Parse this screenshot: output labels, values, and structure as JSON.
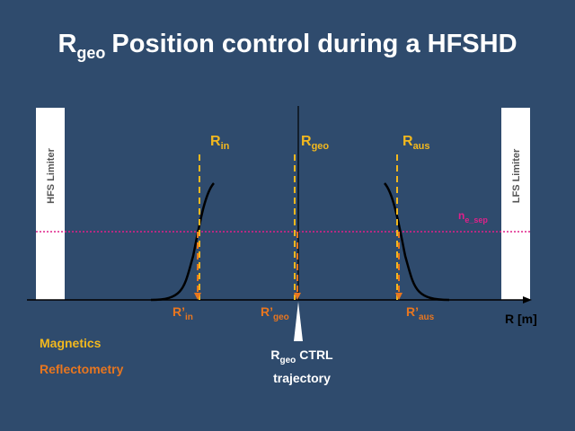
{
  "title": {
    "main": "R",
    "sub": "geo",
    "rest": "Position control during a HFSHD"
  },
  "limiters": {
    "hfs": "HFS Limiter",
    "lfs": "LFS Limiter"
  },
  "magnetics_labels": [
    {
      "main": "R",
      "sub": "in"
    },
    {
      "main": "R",
      "sub": "geo"
    },
    {
      "main": "R",
      "sub": "aus"
    }
  ],
  "reflectometry_labels": [
    {
      "main": "R’",
      "sub": "in"
    },
    {
      "main": "R’",
      "sub": "geo"
    },
    {
      "main": "R’",
      "sub": "aus"
    }
  ],
  "density_label": {
    "main": "n",
    "sub": "e_sep"
  },
  "axis_label": "R [m]",
  "legend": {
    "magnetics": "Magnetics",
    "reflectometry": "Reflectometry"
  },
  "trajectory": {
    "main": "R",
    "sub": "geo",
    "rest": "CTRL",
    "line2": "trajectory"
  }
}
